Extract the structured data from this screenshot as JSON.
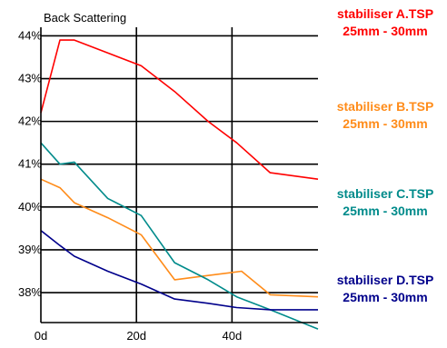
{
  "chart_data": {
    "type": "line",
    "title": "Back Scattering",
    "xlabel": "",
    "ylabel": "",
    "x_ticks": [
      "0d",
      "20d",
      "40d"
    ],
    "y_ticks": [
      "44%",
      "43%",
      "42%",
      "41%",
      "40%",
      "39%",
      "38%"
    ],
    "xlim": [
      0,
      58
    ],
    "ylim": [
      37.3,
      44.2
    ],
    "grid": true,
    "legend_position": "right",
    "series": [
      {
        "name": "stabiliser A.TSP",
        "subname": "25mm - 30mm",
        "color": "#ff0000",
        "x": [
          0,
          4,
          7,
          14,
          21,
          28,
          35,
          41,
          48,
          58
        ],
        "y": [
          42.2,
          43.9,
          43.9,
          43.6,
          43.3,
          42.7,
          42.0,
          41.5,
          40.8,
          40.65
        ]
      },
      {
        "name": "stabiliser B.TSP",
        "subname": "25mm - 30mm",
        "color": "#ff8c1a",
        "x": [
          0,
          4,
          7,
          14,
          21,
          28,
          35,
          42,
          48,
          58
        ],
        "y": [
          40.65,
          40.45,
          40.1,
          39.75,
          39.35,
          38.3,
          38.4,
          38.5,
          37.95,
          37.9
        ]
      },
      {
        "name": "stabiliser C.TSP",
        "subname": "25mm - 30mm",
        "color": "#008b8b",
        "x": [
          0,
          4,
          7,
          14,
          21,
          28,
          35,
          41,
          48,
          58
        ],
        "y": [
          41.5,
          41.0,
          41.05,
          40.2,
          39.8,
          38.7,
          38.3,
          37.9,
          37.6,
          37.15
        ]
      },
      {
        "name": "stabiliser D.TSP",
        "subname": "25mm - 30mm",
        "color": "#00008b",
        "x": [
          0,
          4,
          7,
          14,
          21,
          28,
          35,
          41,
          48,
          58
        ],
        "y": [
          39.45,
          39.1,
          38.85,
          38.5,
          38.2,
          37.85,
          37.75,
          37.65,
          37.6,
          37.6
        ]
      }
    ]
  }
}
